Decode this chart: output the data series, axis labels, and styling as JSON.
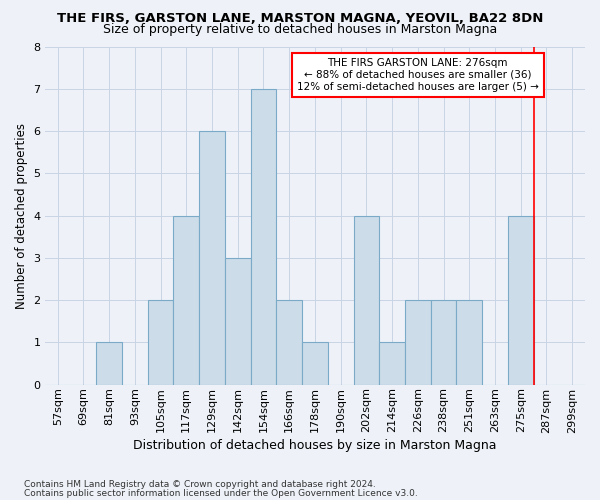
{
  "title1": "THE FIRS, GARSTON LANE, MARSTON MAGNA, YEOVIL, BA22 8DN",
  "title2": "Size of property relative to detached houses in Marston Magna",
  "xlabel": "Distribution of detached houses by size in Marston Magna",
  "ylabel": "Number of detached properties",
  "footnote1": "Contains HM Land Registry data © Crown copyright and database right 2024.",
  "footnote2": "Contains public sector information licensed under the Open Government Licence v3.0.",
  "bin_labels": [
    "57sqm",
    "69sqm",
    "81sqm",
    "93sqm",
    "105sqm",
    "117sqm",
    "129sqm",
    "142sqm",
    "154sqm",
    "166sqm",
    "178sqm",
    "190sqm",
    "202sqm",
    "214sqm",
    "226sqm",
    "238sqm",
    "251sqm",
    "263sqm",
    "275sqm",
    "287sqm",
    "299sqm"
  ],
  "bar_values": [
    0,
    0,
    1,
    0,
    2,
    4,
    6,
    3,
    7,
    2,
    1,
    0,
    4,
    1,
    2,
    2,
    2,
    0,
    4,
    0,
    0
  ],
  "bar_color": "#ccdce8",
  "bar_edge_color": "#7aaac8",
  "grid_color": "#c8d4e4",
  "bg_color": "#eef2f8",
  "red_line_index": 18.5,
  "annotation_text": "THE FIRS GARSTON LANE: 276sqm\n← 88% of detached houses are smaller (36)\n12% of semi-detached houses are larger (5) →",
  "annotation_box_color": "white",
  "annotation_box_edge": "red",
  "ylim": [
    0,
    8
  ],
  "yticks": [
    0,
    1,
    2,
    3,
    4,
    5,
    6,
    7,
    8
  ],
  "title1_fontsize": 9.5,
  "title2_fontsize": 9,
  "ylabel_fontsize": 8.5,
  "xlabel_fontsize": 9,
  "tick_fontsize": 8,
  "annot_fontsize": 7.5
}
